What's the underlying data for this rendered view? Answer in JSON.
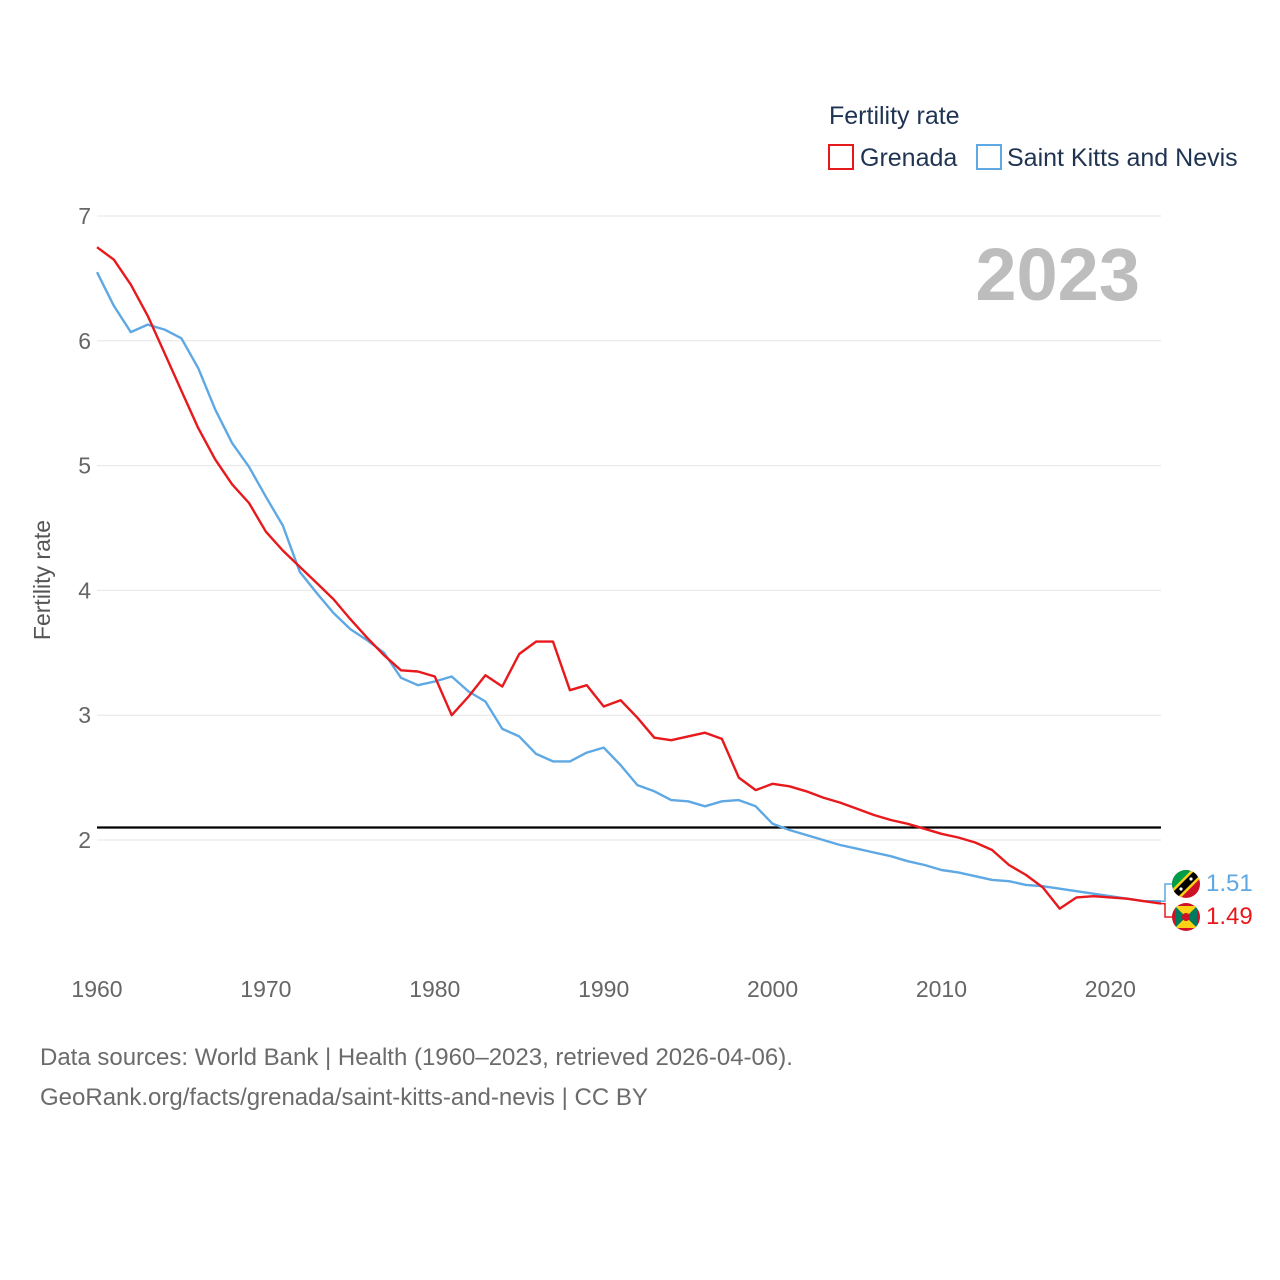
{
  "chart_data": {
    "type": "line",
    "legend_title": "Fertility rate",
    "ylabel": "Fertility rate",
    "year_label": "2023",
    "xlim": [
      1960,
      2023
    ],
    "ylim": [
      1,
      7
    ],
    "y_ticks": [
      2,
      3,
      4,
      5,
      6,
      7
    ],
    "x_ticks": [
      1960,
      1970,
      1980,
      1990,
      2000,
      2010,
      2020
    ],
    "reference_line": 2.1,
    "x": [
      1960,
      1961,
      1962,
      1963,
      1964,
      1965,
      1966,
      1967,
      1968,
      1969,
      1970,
      1971,
      1972,
      1973,
      1974,
      1975,
      1976,
      1977,
      1978,
      1979,
      1980,
      1981,
      1982,
      1983,
      1984,
      1985,
      1986,
      1987,
      1988,
      1989,
      1990,
      1991,
      1992,
      1993,
      1994,
      1995,
      1996,
      1997,
      1998,
      1999,
      2000,
      2001,
      2002,
      2003,
      2004,
      2005,
      2006,
      2007,
      2008,
      2009,
      2010,
      2011,
      2012,
      2013,
      2014,
      2015,
      2016,
      2017,
      2018,
      2019,
      2020,
      2021,
      2022,
      2023
    ],
    "series": [
      {
        "name": "Grenada",
        "color": "#e8191c",
        "end_label": "1.49",
        "values": [
          6.75,
          6.65,
          6.45,
          6.2,
          5.9,
          5.6,
          5.3,
          5.05,
          4.85,
          4.7,
          4.47,
          4.32,
          4.19,
          4.06,
          3.93,
          3.77,
          3.62,
          3.48,
          3.36,
          3.35,
          3.31,
          3.0,
          3.15,
          3.32,
          3.23,
          3.49,
          3.59,
          3.59,
          3.2,
          3.24,
          3.07,
          3.12,
          2.98,
          2.82,
          2.8,
          2.83,
          2.86,
          2.81,
          2.5,
          2.4,
          2.45,
          2.43,
          2.39,
          2.34,
          2.3,
          2.25,
          2.2,
          2.16,
          2.13,
          2.09,
          2.05,
          2.02,
          1.98,
          1.92,
          1.8,
          1.72,
          1.62,
          1.45,
          1.54,
          1.55,
          1.54,
          1.53,
          1.51,
          1.49
        ]
      },
      {
        "name": "Saint Kitts and Nevis",
        "color": "#5ea8e4",
        "end_label": "1.51",
        "values": [
          6.55,
          6.28,
          6.07,
          6.13,
          6.09,
          6.02,
          5.78,
          5.45,
          5.18,
          4.99,
          4.75,
          4.52,
          4.15,
          3.98,
          3.82,
          3.69,
          3.6,
          3.5,
          3.3,
          3.24,
          3.27,
          3.31,
          3.19,
          3.11,
          2.89,
          2.83,
          2.69,
          2.63,
          2.63,
          2.7,
          2.74,
          2.6,
          2.44,
          2.39,
          2.32,
          2.31,
          2.27,
          2.31,
          2.32,
          2.27,
          2.13,
          2.08,
          2.04,
          2.0,
          1.96,
          1.93,
          1.9,
          1.87,
          1.83,
          1.8,
          1.76,
          1.74,
          1.71,
          1.68,
          1.67,
          1.64,
          1.63,
          1.61,
          1.59,
          1.57,
          1.55,
          1.53,
          1.51,
          1.51
        ]
      }
    ]
  },
  "footer": {
    "source": "Data sources: World Bank | Health (1960–2023, retrieved 2026-04-06).",
    "url": "GeoRank.org/facts/grenada/saint-kitts-and-nevis | CC BY"
  }
}
